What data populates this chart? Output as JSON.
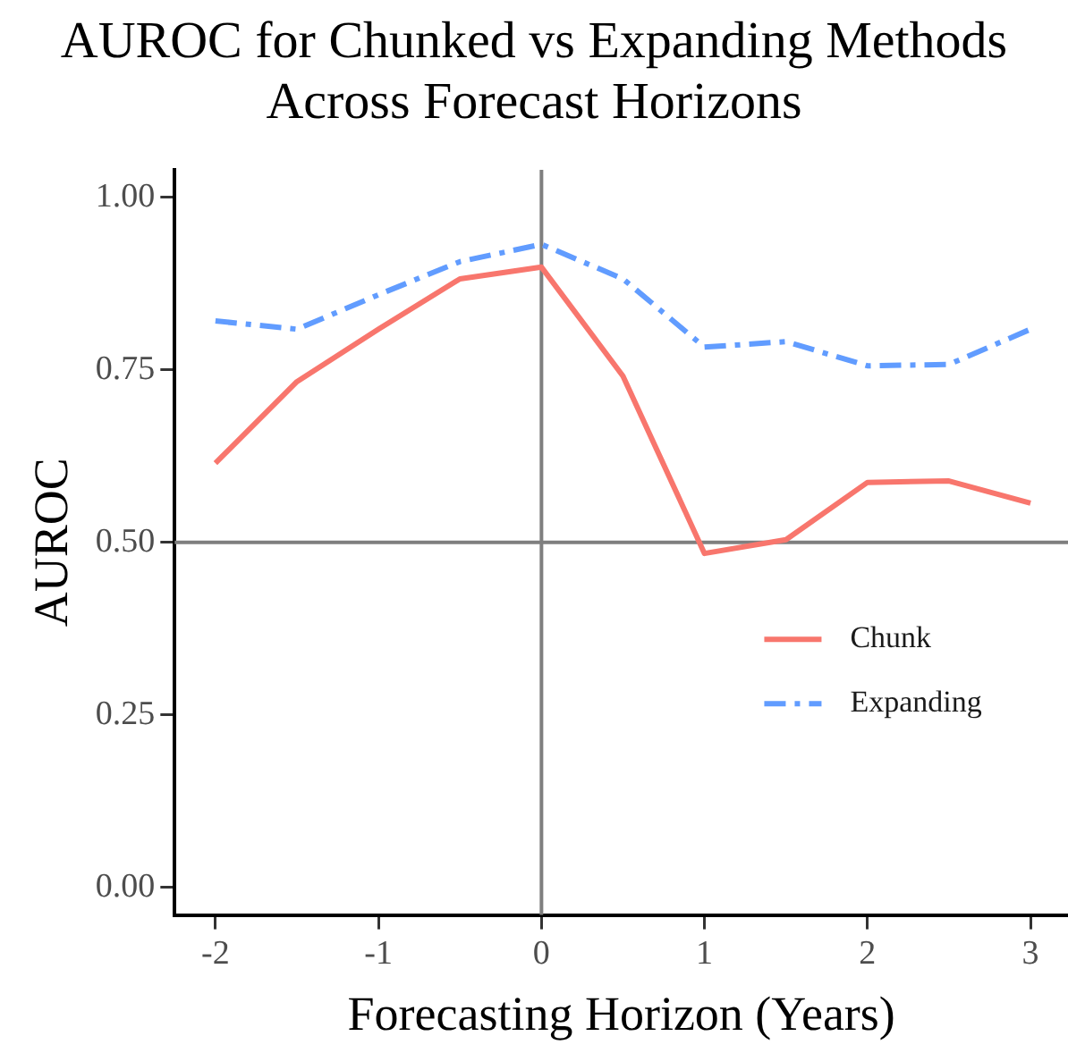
{
  "chart_data": {
    "type": "line",
    "title": "AUROC for Chunked vs Expanding Methods Across Forecast Horizons",
    "xlabel": "Forecasting Horizon (Years)",
    "ylabel": "AUROC",
    "x": [
      -2,
      -1.5,
      -1,
      -0.5,
      0,
      0.5,
      1,
      1.5,
      2,
      2.5,
      3
    ],
    "series": [
      {
        "name": "Chunk",
        "color": "#f8766d",
        "line_style": "solid",
        "values": [
          0.615,
          0.733,
          0.809,
          0.882,
          0.899,
          0.741,
          0.484,
          0.504,
          0.587,
          0.589,
          0.557
        ]
      },
      {
        "name": "Expanding",
        "color": "#619cff",
        "line_style": "dashed",
        "values": [
          0.821,
          0.809,
          0.859,
          0.907,
          0.932,
          0.882,
          0.783,
          0.791,
          0.756,
          0.758,
          0.809
        ]
      }
    ],
    "xlim": [
      -2.25,
      3.23
    ],
    "xticks": [
      {
        "value": -2,
        "label": "-2"
      },
      {
        "value": -1,
        "label": "-1"
      },
      0,
      1,
      2,
      3
    ],
    "ylim": [
      -0.04,
      1.04
    ],
    "yticks": [
      {
        "value": 0,
        "label": "0.00"
      },
      {
        "value": 0.25,
        "label": "0.25"
      },
      {
        "value": 0.5,
        "label": "0.50"
      },
      {
        "value": 0.75,
        "label": "0.75"
      },
      {
        "value": 1,
        "label": "1.00"
      }
    ],
    "ref_lines": [
      {
        "axis": "x",
        "value": 0,
        "color": "#7f7f7f"
      },
      {
        "axis": "y",
        "value": 0.5,
        "color": "#7f7f7f"
      }
    ],
    "grid": false,
    "legend": "right",
    "marker": "none"
  }
}
